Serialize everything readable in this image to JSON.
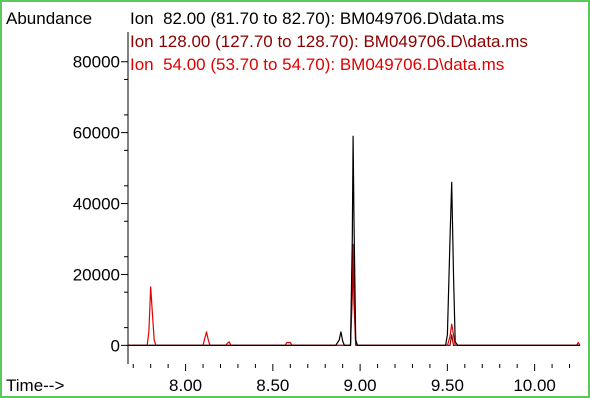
{
  "chart_data": {
    "type": "line",
    "ylabel": "Abundance",
    "xlabel": "Time-->",
    "xlim": [
      7.67,
      10.26
    ],
    "ylim": [
      -3000,
      85000
    ],
    "x_ticks": [
      8.0,
      8.5,
      9.0,
      9.5,
      10.0
    ],
    "x_tick_labels": [
      "8.00",
      "8.50",
      "9.00",
      "9.50",
      "10.00"
    ],
    "y_ticks": [
      0,
      20000,
      40000,
      60000,
      80000
    ],
    "y_tick_labels": [
      "0",
      "20000",
      "40000",
      "60000",
      "80000"
    ],
    "grid": false,
    "legend_placement": "top",
    "series": [
      {
        "name": "Ion  82.00 (81.70 to 82.70): BM049706.D\\data.ms",
        "color": "#000000",
        "baseline": 0,
        "points": [
          [
            7.67,
            0
          ],
          [
            8.86,
            0
          ],
          [
            8.88,
            1500
          ],
          [
            8.89,
            3800
          ],
          [
            8.9,
            1200
          ],
          [
            8.91,
            0
          ],
          [
            8.945,
            0
          ],
          [
            8.955,
            30000
          ],
          [
            8.96,
            59000
          ],
          [
            8.965,
            35000
          ],
          [
            8.975,
            1500
          ],
          [
            8.985,
            0
          ],
          [
            9.49,
            0
          ],
          [
            9.5,
            3000
          ],
          [
            9.515,
            30000
          ],
          [
            9.525,
            46000
          ],
          [
            9.535,
            20000
          ],
          [
            9.545,
            1000
          ],
          [
            9.56,
            0
          ],
          [
            10.26,
            0
          ]
        ]
      },
      {
        "name": "Ion 128.00 (127.70 to 128.70): BM049706.D\\data.ms",
        "color": "#8b0000",
        "baseline": 0,
        "points": [
          [
            7.67,
            0
          ],
          [
            8.945,
            0
          ],
          [
            8.955,
            14000
          ],
          [
            8.96,
            25000
          ],
          [
            8.965,
            12000
          ],
          [
            8.975,
            0
          ],
          [
            9.515,
            0
          ],
          [
            9.525,
            3000
          ],
          [
            9.535,
            0
          ],
          [
            10.26,
            0
          ]
        ]
      },
      {
        "name": "Ion  54.00 (53.70 to 54.70): BM049706.D\\data.ms",
        "color": "#e00000",
        "baseline": 0,
        "points": [
          [
            7.67,
            0
          ],
          [
            7.78,
            0
          ],
          [
            7.79,
            4000
          ],
          [
            7.8,
            16500
          ],
          [
            7.81,
            9000
          ],
          [
            7.82,
            1500
          ],
          [
            7.83,
            0
          ],
          [
            8.1,
            0
          ],
          [
            8.11,
            2000
          ],
          [
            8.12,
            3800
          ],
          [
            8.13,
            1500
          ],
          [
            8.14,
            0
          ],
          [
            8.23,
            0
          ],
          [
            8.24,
            600
          ],
          [
            8.25,
            1000
          ],
          [
            8.26,
            0
          ],
          [
            8.57,
            0
          ],
          [
            8.58,
            800
          ],
          [
            8.6,
            800
          ],
          [
            8.61,
            0
          ],
          [
            8.945,
            0
          ],
          [
            8.955,
            20000
          ],
          [
            8.96,
            28500
          ],
          [
            8.965,
            18000
          ],
          [
            8.975,
            1000
          ],
          [
            8.985,
            0
          ],
          [
            9.5,
            0
          ],
          [
            9.515,
            2500
          ],
          [
            9.525,
            6000
          ],
          [
            9.535,
            3000
          ],
          [
            9.545,
            0
          ],
          [
            10.24,
            0
          ],
          [
            10.25,
            800
          ],
          [
            10.26,
            0
          ]
        ]
      }
    ]
  }
}
